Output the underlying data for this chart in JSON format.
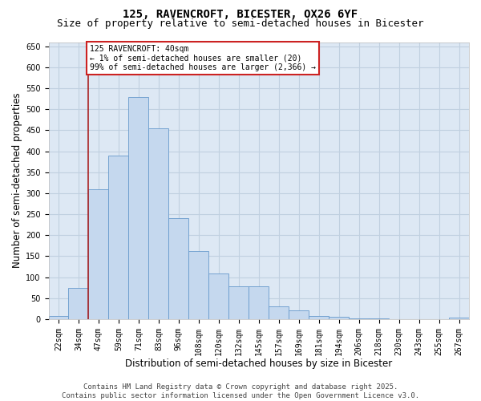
{
  "title": "125, RAVENCROFT, BICESTER, OX26 6YF",
  "subtitle": "Size of property relative to semi-detached houses in Bicester",
  "xlabel": "Distribution of semi-detached houses by size in Bicester",
  "ylabel": "Number of semi-detached properties",
  "categories": [
    "22sqm",
    "34sqm",
    "47sqm",
    "59sqm",
    "71sqm",
    "83sqm",
    "96sqm",
    "108sqm",
    "120sqm",
    "132sqm",
    "145sqm",
    "157sqm",
    "169sqm",
    "181sqm",
    "194sqm",
    "206sqm",
    "218sqm",
    "230sqm",
    "243sqm",
    "255sqm",
    "267sqm"
  ],
  "values": [
    8,
    75,
    310,
    390,
    530,
    455,
    240,
    162,
    108,
    78,
    78,
    30,
    20,
    8,
    5,
    2,
    1,
    0,
    0,
    0,
    4
  ],
  "bar_color": "#c5d8ee",
  "bar_edge_color": "#6699cc",
  "vline_x": 1.5,
  "vline_color": "#aa2222",
  "annotation_text": "125 RAVENCROFT: 40sqm\n← 1% of semi-detached houses are smaller (20)\n99% of semi-detached houses are larger (2,366) →",
  "annotation_box_facecolor": "#ffffff",
  "annotation_box_edgecolor": "#cc2222",
  "ylim": [
    0,
    660
  ],
  "yticks": [
    0,
    50,
    100,
    150,
    200,
    250,
    300,
    350,
    400,
    450,
    500,
    550,
    600,
    650
  ],
  "grid_color": "#c0d0e0",
  "background_color": "#dde8f4",
  "footer_text": "Contains HM Land Registry data © Crown copyright and database right 2025.\nContains public sector information licensed under the Open Government Licence v3.0.",
  "title_fontsize": 10,
  "subtitle_fontsize": 9,
  "axis_label_fontsize": 8.5,
  "tick_fontsize": 7,
  "ann_fontsize": 7,
  "footer_fontsize": 6.5
}
